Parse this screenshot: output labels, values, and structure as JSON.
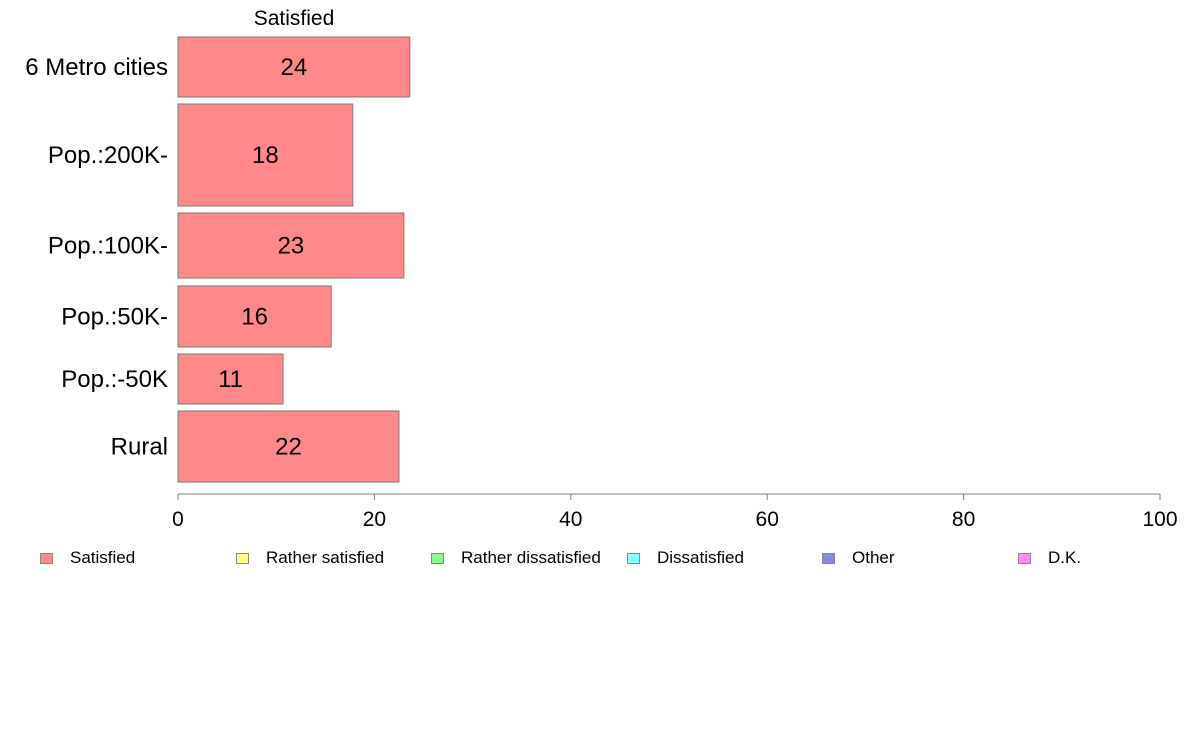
{
  "chart_data": {
    "type": "bar",
    "orientation": "horizontal",
    "title": "Satisfied",
    "categories": [
      "6 Metro cities",
      "Pop.:200K-",
      "Pop.:100K-",
      "Pop.:50K-",
      "Pop.:-50K",
      "Rural"
    ],
    "series": [
      {
        "name": "Satisfied",
        "values": [
          23.6,
          17.8,
          23.0,
          15.6,
          10.7,
          22.5
        ],
        "labels": [
          "24",
          "18",
          "23",
          "16",
          "11",
          "22"
        ]
      }
    ],
    "xlim": [
      0,
      100
    ],
    "xticks": [
      "0",
      "20",
      "40",
      "60",
      "80",
      "100"
    ],
    "xtick_values": [
      0,
      20,
      40,
      60,
      80,
      100
    ],
    "grid": false,
    "legend_position": "bottom",
    "legend": [
      {
        "label": "Satisfied",
        "color": "#ff8888"
      },
      {
        "label": "Rather satisfied",
        "color": "#ffff88"
      },
      {
        "label": "Rather dissatisfied",
        "color": "#88ff88"
      },
      {
        "label": "Dissatisfied",
        "color": "#88ffff"
      },
      {
        "label": "Other",
        "color": "#8888ee"
      },
      {
        "label": "D.K.",
        "color": "#ff88ff"
      }
    ],
    "bar_color": "#ff8888"
  }
}
